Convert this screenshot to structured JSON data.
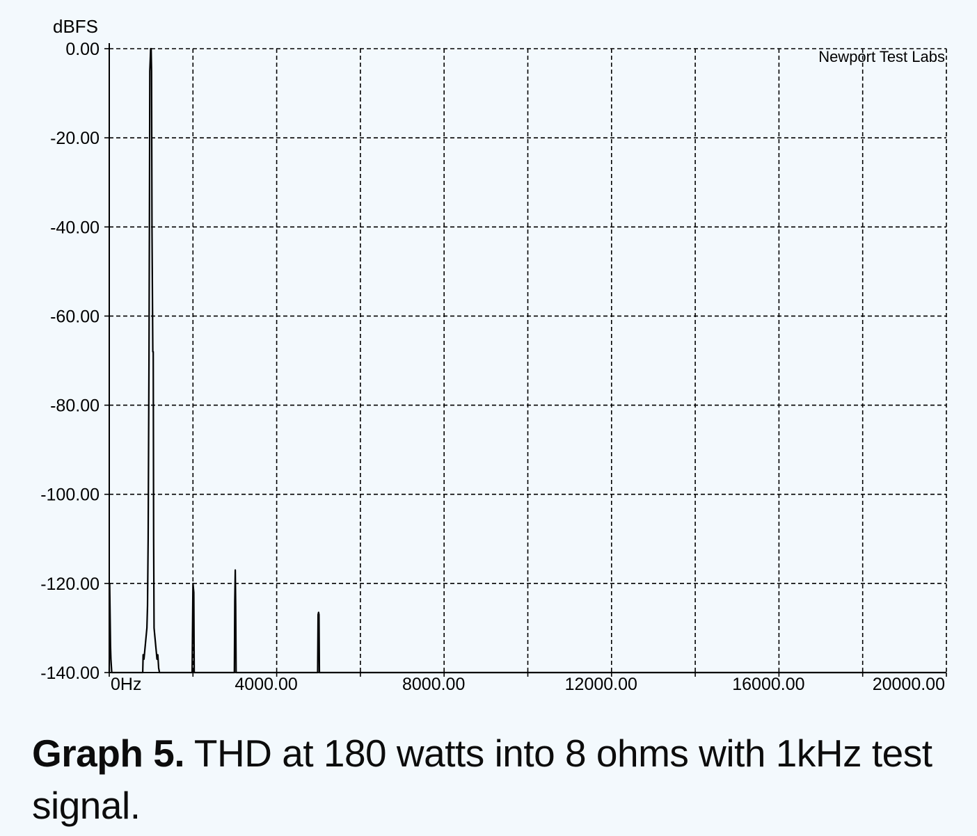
{
  "chart_data": {
    "type": "line",
    "ylabel": "dBFS",
    "watermark": "Newport Test Labs",
    "xlim": [
      0,
      20000
    ],
    "ylim": [
      -140,
      0
    ],
    "x_ticks": [
      {
        "value": 0,
        "label": "0Hz"
      },
      {
        "value": 4000,
        "label": "4000.00"
      },
      {
        "value": 8000,
        "label": "8000.00"
      },
      {
        "value": 12000,
        "label": "12000.00"
      },
      {
        "value": 16000,
        "label": "16000.00"
      },
      {
        "value": 20000,
        "label": "20000.00"
      }
    ],
    "y_ticks": [
      {
        "value": 0,
        "label": "0.00"
      },
      {
        "value": -20,
        "label": "-20.00"
      },
      {
        "value": -40,
        "label": "-40.00"
      },
      {
        "value": -60,
        "label": "-60.00"
      },
      {
        "value": -80,
        "label": "-80.00"
      },
      {
        "value": -100,
        "label": "-100.00"
      },
      {
        "value": -120,
        "label": "-120.00"
      },
      {
        "value": -140,
        "label": "-140.00"
      }
    ],
    "x_grid_step": 2000,
    "grid": true,
    "line_color": "#000000",
    "series": [
      {
        "points": [
          [
            0,
            -140
          ],
          [
            10,
            -120
          ],
          [
            30,
            -134
          ],
          [
            40,
            -137
          ],
          [
            60,
            -140
          ],
          [
            70,
            -140
          ],
          [
            800,
            -140
          ],
          [
            810,
            -136
          ],
          [
            830,
            -137
          ],
          [
            850,
            -135
          ],
          [
            880,
            -132
          ],
          [
            900,
            -130
          ],
          [
            915,
            -125
          ],
          [
            930,
            -110
          ],
          [
            940,
            -90
          ],
          [
            950,
            -70
          ],
          [
            960,
            -40
          ],
          [
            970,
            -5
          ],
          [
            990,
            0
          ],
          [
            1000,
            0
          ],
          [
            1010,
            -5
          ],
          [
            1020,
            -40
          ],
          [
            1040,
            -68
          ],
          [
            1050,
            -68
          ],
          [
            1060,
            -110
          ],
          [
            1070,
            -130
          ],
          [
            1080,
            -131
          ],
          [
            1100,
            -133
          ],
          [
            1120,
            -135
          ],
          [
            1140,
            -137
          ],
          [
            1160,
            -136
          ],
          [
            1180,
            -139
          ],
          [
            1200,
            -140
          ],
          [
            1980,
            -140
          ],
          [
            2000,
            -120
          ],
          [
            2020,
            -122
          ],
          [
            2030,
            -140
          ],
          [
            2990,
            -140
          ],
          [
            3000,
            -124
          ],
          [
            3010,
            -117
          ],
          [
            3020,
            -125
          ],
          [
            3030,
            -140
          ],
          [
            4980,
            -140
          ],
          [
            4990,
            -127
          ],
          [
            5000,
            -126.5
          ],
          [
            5010,
            -127
          ],
          [
            5020,
            -140
          ],
          [
            20000,
            -140
          ]
        ]
      }
    ]
  },
  "caption": {
    "label": "Graph 5.",
    "text": " THD at 180 watts into 8 ohms with 1kHz test signal."
  }
}
